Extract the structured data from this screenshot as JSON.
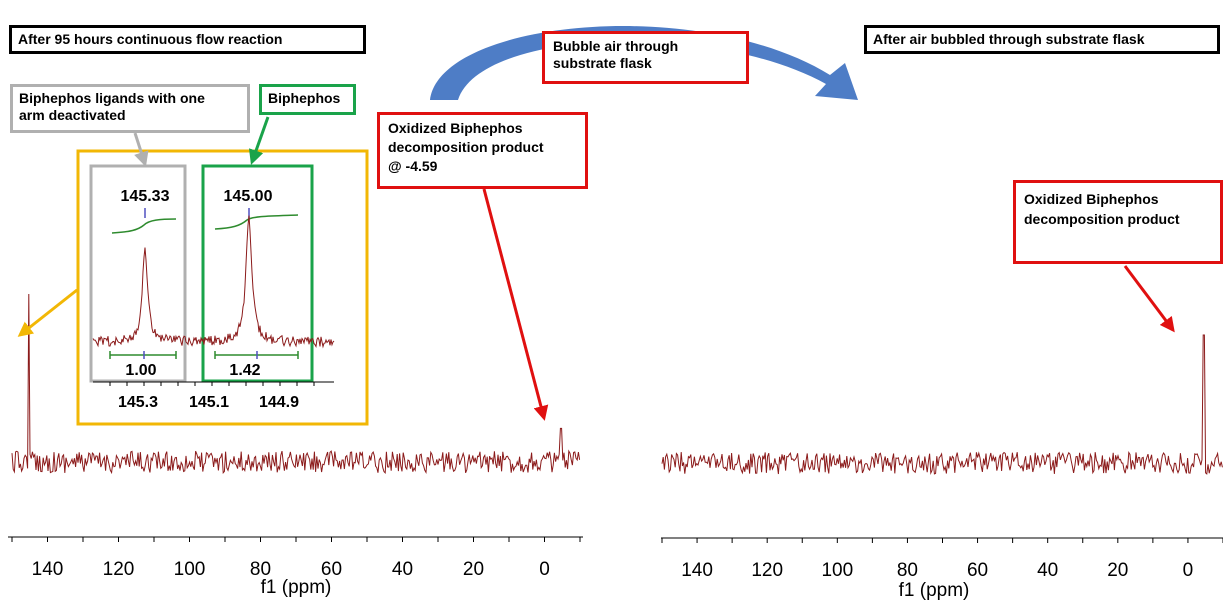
{
  "labels": {
    "left_title": "After 95 hours continuous flow reaction",
    "right_title": "After air bubbled through substrate flask",
    "bubble_air": "Bubble air through\nsubstrate flask",
    "oxidized_left": "Oxidized Biphephos\ndecomposition product\n@ -4.59",
    "oxidized_right": "Oxidized Biphephos\ndecomposition product",
    "biphephos_one_arm": "Biphephos ligands with one\narm deactivated",
    "biphephos": "Biphephos"
  },
  "colors": {
    "spectrum": "#8b1a1a",
    "integral": "#2e8b2e",
    "highlight_box": "#f2b705",
    "callout_red": "#e01010",
    "callout_green": "#1aa34a",
    "callout_gray": "#b0b0b0",
    "arrow_blue": "#3b6fc0"
  },
  "chart_data": [
    {
      "type": "line",
      "name_text": "After 95 hours continuous flow reaction",
      "xlabel": "f1 (ppm)",
      "xlim": [
        150,
        -10
      ],
      "x_reversed": true,
      "ticks": [
        140,
        120,
        100,
        80,
        60,
        40,
        20,
        0
      ],
      "peaks": [
        {
          "ppm": 145.3,
          "height": 1.0
        },
        {
          "ppm": -4.59,
          "height": 0.2
        }
      ],
      "inset": {
        "xlim": [
          145.45,
          144.75
        ],
        "ticks": [
          "145.3",
          "145.1",
          "144.9"
        ],
        "peaks": [
          {
            "ppm": 145.33,
            "label": "145.33",
            "integral": "1.00"
          },
          {
            "ppm": 145.0,
            "label": "145.00",
            "integral": "1.42"
          }
        ]
      }
    },
    {
      "type": "line",
      "name_text": "After air bubbled through substrate flask",
      "xlabel": "f1 (ppm)",
      "xlim": [
        150,
        -10
      ],
      "x_reversed": true,
      "ticks": [
        140,
        120,
        100,
        80,
        60,
        40,
        20,
        0
      ],
      "peaks": [
        {
          "ppm": -4.59,
          "height": 1.0
        }
      ]
    }
  ]
}
